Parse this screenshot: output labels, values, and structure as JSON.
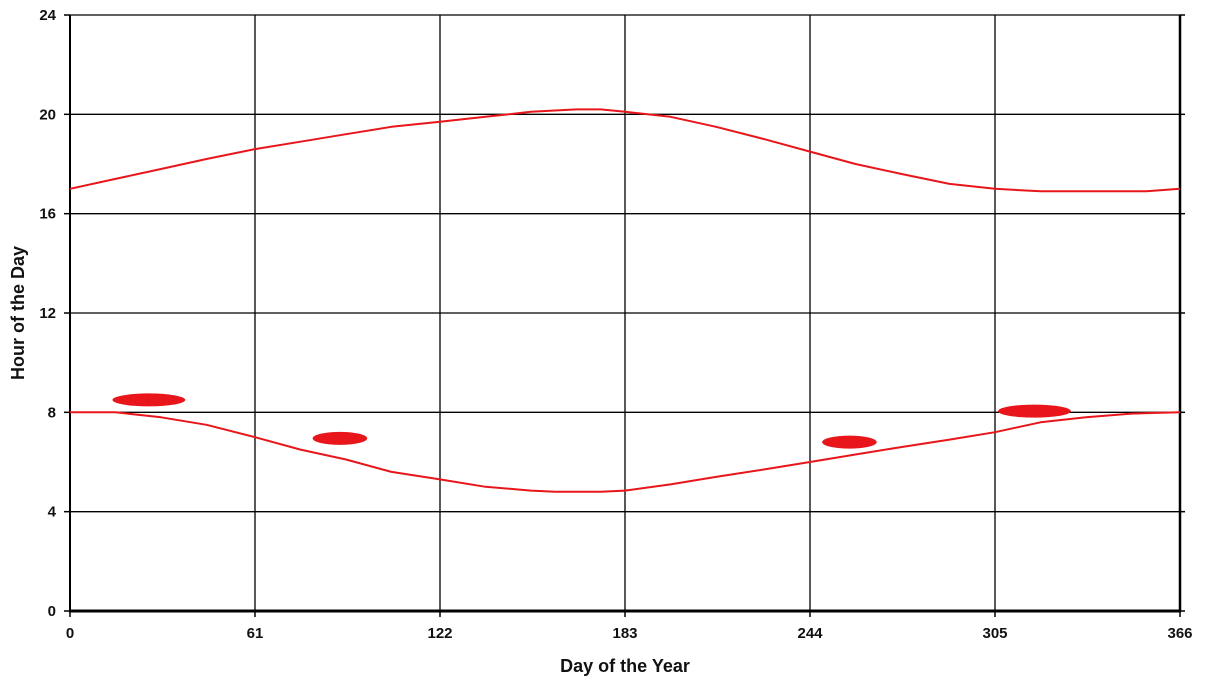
{
  "chart_data": {
    "type": "line",
    "title": "",
    "xlabel": "Day of the Year",
    "ylabel": "Hour of the Day",
    "xlim": [
      0,
      366
    ],
    "ylim": [
      0,
      24
    ],
    "xticks": [
      0,
      61,
      122,
      183,
      244,
      305,
      366
    ],
    "yticks": [
      0,
      4,
      8,
      12,
      16,
      20,
      24
    ],
    "grid": true,
    "legend": "none",
    "line_color": "#e8161b",
    "series": [
      {
        "x": [
          0,
          15,
          30,
          45,
          61,
          76,
          91,
          106,
          122,
          137,
          152,
          167,
          175,
          183,
          198,
          213,
          229,
          244,
          259,
          274,
          290,
          305,
          320,
          335,
          345,
          355,
          366
        ],
        "y": [
          17.0,
          17.4,
          17.8,
          18.2,
          18.6,
          18.9,
          19.2,
          19.5,
          19.7,
          19.9,
          20.1,
          20.2,
          20.2,
          20.1,
          19.9,
          19.5,
          19.0,
          18.5,
          18.0,
          17.6,
          17.2,
          17.0,
          16.9,
          16.9,
          16.9,
          16.9,
          17.0
        ]
      },
      {
        "x": [
          0,
          15,
          30,
          45,
          61,
          76,
          91,
          106,
          122,
          137,
          152,
          160,
          167,
          175,
          183,
          198,
          213,
          229,
          244,
          259,
          274,
          290,
          305,
          320,
          335,
          350,
          366
        ],
        "y": [
          8.0,
          8.0,
          7.8,
          7.5,
          7.0,
          6.5,
          6.1,
          5.6,
          5.3,
          5.0,
          4.85,
          4.8,
          4.8,
          4.8,
          4.85,
          5.1,
          5.4,
          5.7,
          6.0,
          6.3,
          6.6,
          6.9,
          7.2,
          7.6,
          7.8,
          7.95,
          8.0
        ]
      }
    ],
    "markers": [
      {
        "x": 26,
        "y": 8.5,
        "width": 24
      },
      {
        "x": 89,
        "y": 6.95,
        "width": 18
      },
      {
        "x": 257,
        "y": 6.8,
        "width": 18
      },
      {
        "x": 318,
        "y": 8.05,
        "width": 24
      }
    ]
  }
}
